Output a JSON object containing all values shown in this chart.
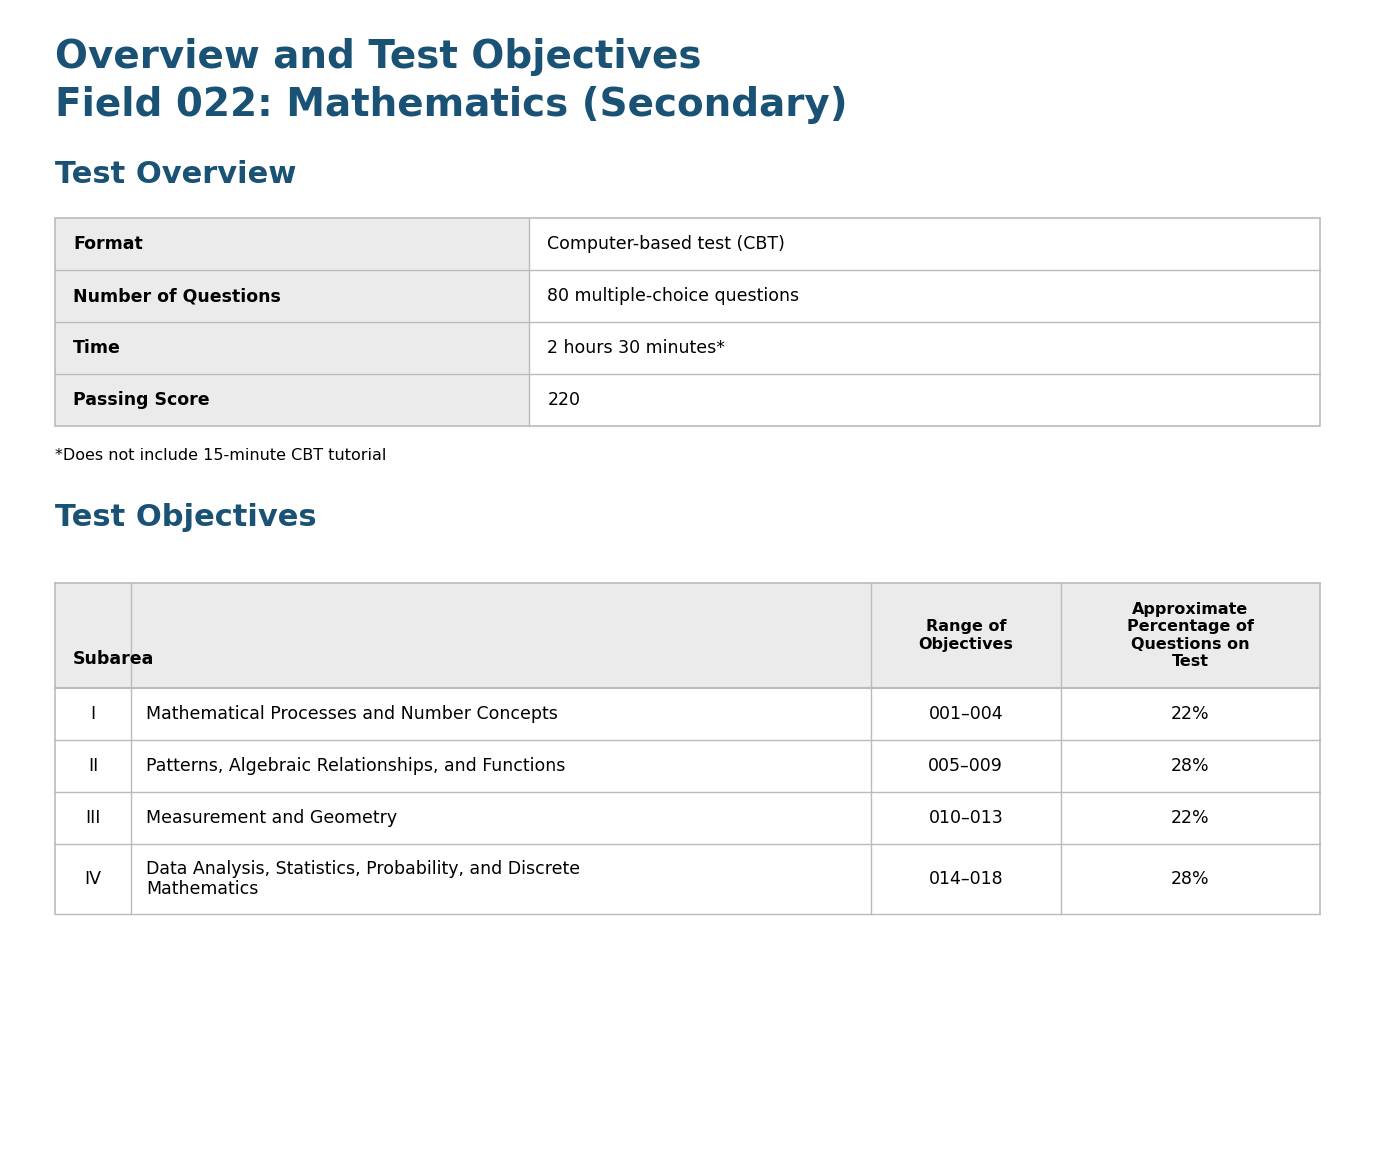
{
  "title_line1": "Overview and Test Objectives",
  "title_line2": "Field 022: Mathematics (Secondary)",
  "title_color": "#1a5276",
  "section1_title": "Test Overview",
  "section2_title": "Test Objectives",
  "section_title_color": "#1a5276",
  "overview_rows": [
    [
      "Format",
      "Computer-based test (CBT)"
    ],
    [
      "Number of Questions",
      "80 multiple-choice questions"
    ],
    [
      "Time",
      "2 hours 30 minutes*"
    ],
    [
      "Passing Score",
      "220"
    ]
  ],
  "footnote": "*Does not include 15-minute CBT tutorial",
  "objectives_header_col1": "Subarea",
  "objectives_header_col2": "Range of\nObjectives",
  "objectives_header_col3": "Approximate\nPercentage of\nQuestions on\nTest",
  "objectives_rows": [
    [
      "I",
      "Mathematical Processes and Number Concepts",
      "001–004",
      "22%"
    ],
    [
      "II",
      "Patterns, Algebraic Relationships, and Functions",
      "005–009",
      "28%"
    ],
    [
      "III",
      "Measurement and Geometry",
      "010–013",
      "22%"
    ],
    [
      "IV",
      "Data Analysis, Statistics, Probability, and Discrete\nMathematics",
      "014–018",
      "28%"
    ]
  ],
  "table_bg_header": "#ebebeb",
  "table_bg_white": "#ffffff",
  "table_border_color": "#bbbbbb",
  "table_text_color": "#000000",
  "bg_color": "#ffffff",
  "fig_width": 13.74,
  "fig_height": 11.68,
  "dpi": 100
}
